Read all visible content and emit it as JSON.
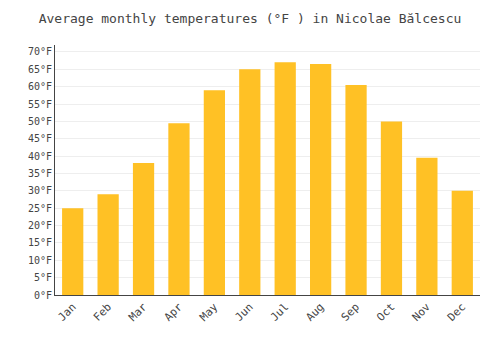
{
  "chart_data": {
    "type": "bar",
    "title": "Average monthly temperatures (°F ) in Nicolae Bălcescu",
    "categories": [
      "Jan",
      "Feb",
      "Mar",
      "Apr",
      "May",
      "Jun",
      "Jul",
      "Aug",
      "Sep",
      "Oct",
      "Nov",
      "Dec"
    ],
    "values": [
      25,
      29,
      38,
      49.5,
      59,
      65,
      67,
      66.5,
      60.5,
      50,
      39.5,
      30
    ],
    "color": "#FFC125",
    "ylim": [
      0,
      72
    ],
    "yticks": [
      {
        "value": 0,
        "label": "0°F"
      },
      {
        "value": 5,
        "label": "5°F"
      },
      {
        "value": 10,
        "label": "10°F"
      },
      {
        "value": 15,
        "label": "15°F"
      },
      {
        "value": 20,
        "label": "20°F"
      },
      {
        "value": 25,
        "label": "25°F"
      },
      {
        "value": 30,
        "label": "30°F"
      },
      {
        "value": 35,
        "label": "35°F"
      },
      {
        "value": 40,
        "label": "40°F"
      },
      {
        "value": 45,
        "label": "45°F"
      },
      {
        "value": 50,
        "label": "50°F"
      },
      {
        "value": 55,
        "label": "55°F"
      },
      {
        "value": 60,
        "label": "60°F"
      },
      {
        "value": 65,
        "label": "65°F"
      },
      {
        "value": 70,
        "label": "70°F"
      }
    ],
    "grid": true
  }
}
